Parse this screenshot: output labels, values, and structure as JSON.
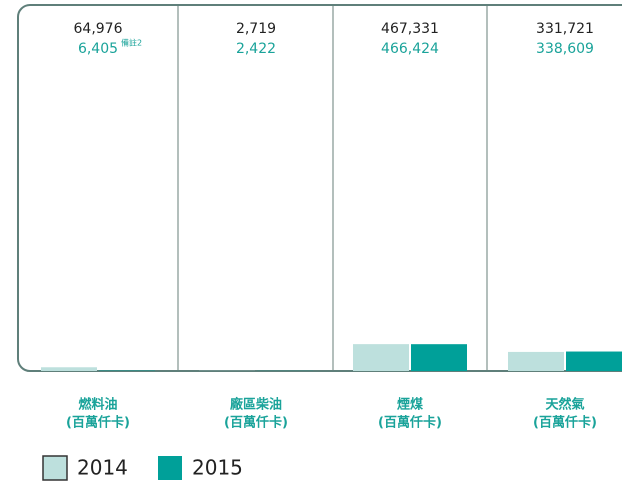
{
  "chart_data": {
    "type": "bar",
    "categories": [
      "燃料油",
      "廠區柴油",
      "煙煤",
      "天然氣"
    ],
    "category_unit": "(百萬仟卡)",
    "series": [
      {
        "name": "2014",
        "color": "#bde0dd",
        "values": [
          64976,
          2719,
          467331,
          331721
        ],
        "value_labels": [
          "64,976",
          "2,719",
          "467,331",
          "331,721"
        ]
      },
      {
        "name": "2015",
        "color": "#00a099",
        "values": [
          6405,
          2422,
          466424,
          338609
        ],
        "value_labels": [
          "6,405",
          "2,422",
          "466,424",
          "338,609"
        ],
        "value_notes": [
          "備註2",
          null,
          null,
          null
        ]
      }
    ],
    "ylim": [
      0,
      6000000
    ]
  }
}
